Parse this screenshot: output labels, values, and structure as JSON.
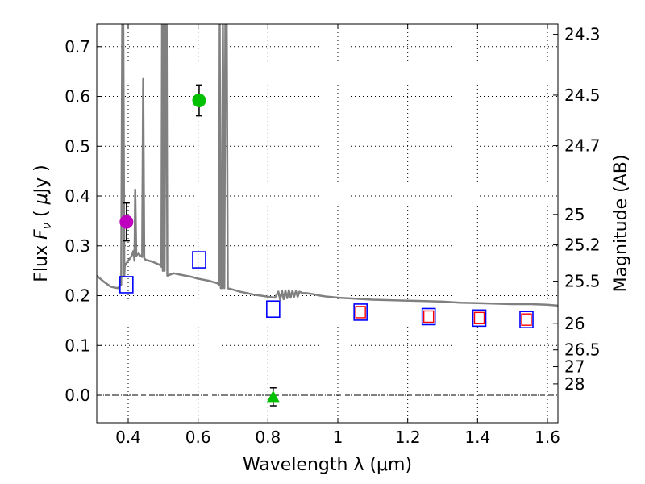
{
  "chart_data": {
    "type": "scatter",
    "xlabel": "Wavelength  λ (μm)",
    "ylabel_parts": [
      "Flux  ",
      "F",
      "ν",
      "  ( ",
      "μ",
      "Jy )"
    ],
    "ylabel_right": "Magnitude (AB)",
    "xlim": [
      0.31,
      1.63
    ],
    "ylim": [
      -0.055,
      0.745
    ],
    "x_ticks": [
      {
        "value": 0.4,
        "label": "0.4"
      },
      {
        "value": 0.6,
        "label": "0.6"
      },
      {
        "value": 0.8,
        "label": "0.8"
      },
      {
        "value": 1.0,
        "label": "1"
      },
      {
        "value": 1.2,
        "label": "1.2"
      },
      {
        "value": 1.4,
        "label": "1.4"
      },
      {
        "value": 1.6,
        "label": "1.6"
      }
    ],
    "y_ticks": [
      {
        "value": 0.0,
        "label": "0.0"
      },
      {
        "value": 0.1,
        "label": "0.1"
      },
      {
        "value": 0.2,
        "label": "0.2"
      },
      {
        "value": 0.3,
        "label": "0.3"
      },
      {
        "value": 0.4,
        "label": "0.4"
      },
      {
        "value": 0.5,
        "label": "0.5"
      },
      {
        "value": 0.6,
        "label": "0.6"
      },
      {
        "value": 0.7,
        "label": "0.7"
      }
    ],
    "mag_ticks": [
      {
        "flux": 0.7246,
        "label": "24.3"
      },
      {
        "flux": 0.6026,
        "label": "24.5"
      },
      {
        "flux": 0.5012,
        "label": "24.7"
      },
      {
        "flux": 0.3631,
        "label": "25"
      },
      {
        "flux": 0.302,
        "label": "25.2"
      },
      {
        "flux": 0.2291,
        "label": "25.5"
      },
      {
        "flux": 0.1445,
        "label": "26"
      },
      {
        "flux": 0.0912,
        "label": "26.5"
      },
      {
        "flux": 0.0575,
        "label": "27"
      },
      {
        "flux": 0.0229,
        "label": "28"
      }
    ],
    "grid": true,
    "zero_line": true,
    "model_spectrum": {
      "name": "model SED",
      "color": "#808080",
      "points": [
        [
          0.31,
          0.24
        ],
        [
          0.33,
          0.228
        ],
        [
          0.35,
          0.218
        ],
        [
          0.37,
          0.215
        ],
        [
          0.38,
          0.222
        ],
        [
          0.383,
          0.745
        ],
        [
          0.386,
          0.745
        ],
        [
          0.389,
          0.24
        ],
        [
          0.39,
          0.26
        ],
        [
          0.395,
          0.265
        ],
        [
          0.4,
          0.27
        ],
        [
          0.405,
          0.275
        ],
        [
          0.41,
          0.28
        ],
        [
          0.415,
          0.29
        ],
        [
          0.418,
          0.27
        ],
        [
          0.42,
          0.413
        ],
        [
          0.423,
          0.28
        ],
        [
          0.43,
          0.285
        ],
        [
          0.435,
          0.28
        ],
        [
          0.44,
          0.278
        ],
        [
          0.443,
          0.635
        ],
        [
          0.446,
          0.275
        ],
        [
          0.45,
          0.272
        ],
        [
          0.47,
          0.268
        ],
        [
          0.49,
          0.262
        ],
        [
          0.495,
          0.258
        ],
        [
          0.497,
          0.745
        ],
        [
          0.499,
          0.25
        ],
        [
          0.502,
          0.745
        ],
        [
          0.504,
          0.25
        ],
        [
          0.507,
          0.745
        ],
        [
          0.51,
          0.745
        ],
        [
          0.512,
          0.24
        ],
        [
          0.53,
          0.245
        ],
        [
          0.55,
          0.242
        ],
        [
          0.58,
          0.238
        ],
        [
          0.6,
          0.234
        ],
        [
          0.63,
          0.23
        ],
        [
          0.655,
          0.225
        ],
        [
          0.66,
          0.222
        ],
        [
          0.662,
          0.745
        ],
        [
          0.665,
          0.215
        ],
        [
          0.668,
          0.215
        ],
        [
          0.671,
          0.745
        ],
        [
          0.675,
          0.215
        ],
        [
          0.678,
          0.745
        ],
        [
          0.682,
          0.745
        ],
        [
          0.685,
          0.215
        ],
        [
          0.7,
          0.212
        ],
        [
          0.72,
          0.208
        ],
        [
          0.74,
          0.205
        ],
        [
          0.76,
          0.202
        ],
        [
          0.78,
          0.2
        ],
        [
          0.8,
          0.198
        ],
        [
          0.82,
          0.196
        ],
        [
          0.83,
          0.208
        ],
        [
          0.835,
          0.192
        ],
        [
          0.84,
          0.21
        ],
        [
          0.845,
          0.193
        ],
        [
          0.85,
          0.21
        ],
        [
          0.855,
          0.195
        ],
        [
          0.86,
          0.211
        ],
        [
          0.865,
          0.196
        ],
        [
          0.87,
          0.21
        ],
        [
          0.875,
          0.198
        ],
        [
          0.88,
          0.209
        ],
        [
          0.885,
          0.198
        ],
        [
          0.89,
          0.208
        ],
        [
          0.9,
          0.205
        ],
        [
          0.91,
          0.205
        ],
        [
          0.93,
          0.203
        ],
        [
          0.95,
          0.2
        ],
        [
          0.97,
          0.198
        ],
        [
          1.0,
          0.196
        ],
        [
          1.05,
          0.194
        ],
        [
          1.1,
          0.192
        ],
        [
          1.15,
          0.191
        ],
        [
          1.2,
          0.19
        ],
        [
          1.25,
          0.189
        ],
        [
          1.3,
          0.188
        ],
        [
          1.35,
          0.186
        ],
        [
          1.4,
          0.185
        ],
        [
          1.45,
          0.184
        ],
        [
          1.5,
          0.183
        ],
        [
          1.55,
          0.183
        ],
        [
          1.6,
          0.182
        ],
        [
          1.63,
          0.18
        ]
      ]
    },
    "observed_points": [
      {
        "name": "observed-u",
        "x": 0.395,
        "y": 0.348,
        "err": 0.038,
        "marker": "circle",
        "color": "#bf00bf"
      },
      {
        "name": "observed-r",
        "x": 0.603,
        "y": 0.592,
        "err": 0.031,
        "marker": "circle",
        "color": "#00c000"
      },
      {
        "name": "observed-z",
        "x": 0.815,
        "y": -0.003,
        "err": 0.018,
        "marker": "triangle",
        "color": "#00c000"
      }
    ],
    "model_photometry_blue": {
      "color": "#0000ff",
      "points": [
        [
          0.395,
          0.222
        ],
        [
          0.603,
          0.272
        ],
        [
          0.815,
          0.173
        ],
        [
          1.065,
          0.167
        ],
        [
          1.26,
          0.158
        ],
        [
          1.405,
          0.155
        ],
        [
          1.54,
          0.152
        ]
      ]
    },
    "model_photometry_red": {
      "color": "#ff0000",
      "points": [
        [
          1.065,
          0.167
        ],
        [
          1.26,
          0.158
        ],
        [
          1.405,
          0.155
        ],
        [
          1.54,
          0.152
        ]
      ]
    }
  }
}
